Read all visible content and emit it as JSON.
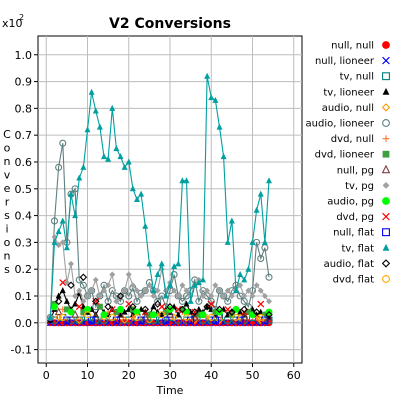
{
  "chart_data": {
    "type": "scatter",
    "title": "V2 Conversions",
    "xlabel": "Time",
    "ylabel": "Conversions",
    "y_multiplier_label": "x10",
    "y_multiplier_exponent": "2",
    "xlim": [
      -2,
      62
    ],
    "ylim": [
      -0.15,
      1.07
    ],
    "x_ticks": [
      0,
      10,
      20,
      30,
      40,
      50,
      60
    ],
    "x_tick_labels": [
      "0",
      "10",
      "20",
      "30",
      "40",
      "50",
      "60"
    ],
    "y_ticks": [
      -0.1,
      0.0,
      0.1,
      0.2,
      0.3,
      0.4,
      0.5,
      0.6,
      0.7,
      0.8,
      0.9,
      1.0
    ],
    "y_tick_labels": [
      "-0.1",
      "0.0",
      "0.1",
      "0.2",
      "0.3",
      "0.4",
      "0.5",
      "0.6",
      "0.7",
      "0.8",
      "0.9",
      "1.0"
    ],
    "grid": true,
    "legend_position": "right",
    "series": [
      {
        "name": "null, null",
        "color": "#ff0000",
        "marker": "circle-filled",
        "line": false,
        "x": [
          1,
          2,
          3,
          4,
          5,
          6,
          7,
          8,
          9,
          10,
          11,
          12,
          13,
          14,
          15,
          16,
          17,
          18,
          19,
          20,
          21,
          22,
          23,
          24,
          25,
          26,
          27,
          28,
          29,
          30,
          31,
          32,
          33,
          34,
          35,
          36,
          37,
          38,
          39,
          40,
          41,
          42,
          43,
          44,
          45,
          46,
          47,
          48,
          49,
          50,
          51,
          52,
          53,
          54
        ],
        "y": [
          0,
          0,
          0,
          0,
          0,
          0,
          0,
          0,
          0,
          0,
          0,
          0,
          0,
          0,
          0,
          0,
          0,
          0,
          0,
          0,
          0,
          0,
          0,
          0,
          0,
          0,
          0,
          0,
          0,
          0,
          0,
          0,
          0,
          0,
          0,
          0,
          0,
          0,
          0,
          0,
          0,
          0,
          0,
          0,
          0,
          0,
          0,
          0,
          0,
          0,
          0,
          0,
          0,
          0
        ]
      },
      {
        "name": "null, lioneer",
        "color": "#0000ff",
        "marker": "x",
        "line": false,
        "x": [
          1,
          3,
          5,
          7,
          9,
          11,
          13,
          15,
          17,
          19,
          21,
          23,
          25,
          27,
          29,
          31,
          33,
          35,
          37,
          39,
          41,
          43,
          45,
          47,
          49,
          51,
          53
        ],
        "y": [
          0,
          0,
          0,
          0,
          0,
          0,
          0,
          0,
          0,
          0,
          0,
          0,
          0,
          0,
          0,
          0,
          0,
          0,
          0,
          0,
          0,
          0,
          0,
          0,
          0,
          0,
          0
        ]
      },
      {
        "name": "tv, null",
        "color": "#008080",
        "marker": "square-open",
        "line": false,
        "x": [
          2,
          4,
          6,
          8,
          10,
          12,
          14,
          16,
          18,
          20,
          22,
          24,
          26,
          28,
          30,
          32,
          34,
          36,
          38,
          40,
          42,
          44,
          46,
          48,
          50,
          52,
          54
        ],
        "y": [
          0.01,
          0.02,
          0.01,
          0.01,
          0.02,
          0.01,
          0.01,
          0.02,
          0.01,
          0.01,
          0.02,
          0.01,
          0.01,
          0.01,
          0.02,
          0.01,
          0.01,
          0.02,
          0.01,
          0.01,
          0.02,
          0.01,
          0.01,
          0.01,
          0.02,
          0.01,
          0.01
        ]
      },
      {
        "name": "tv, lioneer",
        "color": "#000000",
        "marker": "triangle-filled",
        "line": true,
        "x": [
          1,
          2,
          3,
          4,
          5,
          6,
          7,
          8,
          9,
          10,
          11,
          12,
          13,
          14,
          15,
          16,
          17,
          18,
          19,
          20,
          21,
          22,
          23,
          24,
          25,
          26,
          27,
          28,
          29,
          30,
          31,
          32,
          33,
          34,
          35,
          36,
          37,
          38,
          39,
          40,
          41,
          42,
          43,
          44,
          45,
          46,
          47,
          48,
          49,
          50,
          51,
          52,
          53,
          54
        ],
        "y": [
          0.01,
          0.05,
          0.1,
          0.12,
          0.08,
          0.05,
          0.07,
          0.11,
          0.06,
          0.04,
          0.05,
          0.03,
          0.06,
          0.04,
          0.03,
          0.05,
          0.04,
          0.03,
          0.04,
          0.05,
          0.03,
          0.04,
          0.05,
          0.04,
          0.03,
          0.06,
          0.04,
          0.03,
          0.05,
          0.04,
          0.06,
          0.03,
          0.05,
          0.07,
          0.04,
          0.03,
          0.05,
          0.04,
          0.06,
          0.05,
          0.03,
          0.04,
          0.05,
          0.03,
          0.04,
          0.05,
          0.04,
          0.03,
          0.04,
          0.05,
          0.03,
          0.04,
          0.03,
          0.02
        ]
      },
      {
        "name": "audio, null",
        "color": "#ff9900",
        "marker": "diamond-open",
        "line": false,
        "x": [
          3,
          8,
          14,
          19,
          25,
          31,
          36,
          42,
          47,
          52
        ],
        "y": [
          0.02,
          0.01,
          0.02,
          0.01,
          0.01,
          0.02,
          0.01,
          0.01,
          0.02,
          0.01
        ]
      },
      {
        "name": "audio, lioneer",
        "color": "#5f8080",
        "marker": "circle-open",
        "line": true,
        "x": [
          1,
          2,
          3,
          4,
          5,
          6,
          7,
          8,
          9,
          10,
          11,
          12,
          13,
          14,
          15,
          16,
          17,
          18,
          19,
          20,
          21,
          22,
          23,
          24,
          25,
          26,
          27,
          28,
          29,
          30,
          31,
          32,
          33,
          34,
          35,
          36,
          37,
          38,
          39,
          40,
          41,
          42,
          43,
          44,
          45,
          46,
          47,
          48,
          49,
          50,
          51,
          52,
          53,
          54
        ],
        "y": [
          0.02,
          0.38,
          0.58,
          0.67,
          0.3,
          0.48,
          0.5,
          0.16,
          0.14,
          0.1,
          0.12,
          0.06,
          0.1,
          0.14,
          0.08,
          0.12,
          0.1,
          0.08,
          0.12,
          0.1,
          0.13,
          0.08,
          0.11,
          0.12,
          0.15,
          0.12,
          0.08,
          0.1,
          0.06,
          0.12,
          0.18,
          0.1,
          0.08,
          0.1,
          0.12,
          0.16,
          0.08,
          0.12,
          0.1,
          0.08,
          0.05,
          0.12,
          0.1,
          0.08,
          0.12,
          0.14,
          0.1,
          0.08,
          0.06,
          0.12,
          0.3,
          0.24,
          0.28,
          0.17
        ]
      },
      {
        "name": "dvd, null",
        "color": "#ff8040",
        "marker": "plus",
        "line": false,
        "x": [
          4,
          9,
          15,
          21,
          27,
          33,
          39,
          45,
          51
        ],
        "y": [
          0.05,
          0.03,
          0.04,
          0.02,
          0.03,
          0.04,
          0.02,
          0.03,
          0.02
        ]
      },
      {
        "name": "dvd, lioneer",
        "color": "#40a040",
        "marker": "square-filled",
        "line": false,
        "x": [
          2,
          5,
          9,
          13,
          17,
          21,
          25,
          29,
          33,
          37,
          41,
          45,
          49,
          53
        ],
        "y": [
          0.07,
          0.05,
          0.04,
          0.06,
          0.04,
          0.05,
          0.03,
          0.04,
          0.05,
          0.03,
          0.04,
          0.03,
          0.04,
          0.03
        ]
      },
      {
        "name": "null, pg",
        "color": "#804040",
        "marker": "triangle-open",
        "line": false,
        "x": [
          3,
          7,
          12,
          18,
          24,
          30,
          36,
          42,
          48,
          54
        ],
        "y": [
          0.04,
          0.03,
          0.02,
          0.03,
          0.02,
          0.03,
          0.02,
          0.03,
          0.02,
          0.02
        ]
      },
      {
        "name": "tv, pg",
        "color": "#a0a0a0",
        "marker": "diamond-filled",
        "line": true,
        "x": [
          1,
          2,
          3,
          4,
          5,
          6,
          7,
          8,
          9,
          10,
          11,
          12,
          13,
          14,
          15,
          16,
          17,
          18,
          19,
          20,
          21,
          22,
          23,
          24,
          25,
          26,
          27,
          28,
          29,
          30,
          31,
          32,
          33,
          34,
          35,
          36,
          37,
          38,
          39,
          40,
          41,
          42,
          43,
          44,
          45,
          46,
          47,
          48,
          49,
          50,
          51,
          52,
          53,
          54
        ],
        "y": [
          0.02,
          0.32,
          0.29,
          0.3,
          0.15,
          0.22,
          0.1,
          0.12,
          0.08,
          0.1,
          0.12,
          0.16,
          0.1,
          0.12,
          0.14,
          0.18,
          0.08,
          0.1,
          0.12,
          0.18,
          0.14,
          0.12,
          0.1,
          0.12,
          0.14,
          0.1,
          0.12,
          0.2,
          0.12,
          0.15,
          0.12,
          0.1,
          0.14,
          0.12,
          0.1,
          0.14,
          0.16,
          0.1,
          0.12,
          0.1,
          0.14,
          0.12,
          0.1,
          0.12,
          0.1,
          0.12,
          0.14,
          0.1,
          0.12,
          0.1,
          0.14,
          0.12,
          0.1,
          0.08
        ]
      },
      {
        "name": "audio, pg",
        "color": "#00ff00",
        "marker": "circle-filled",
        "line": false,
        "x": [
          2,
          6,
          10,
          14,
          18,
          22,
          26,
          30,
          34,
          38,
          42,
          46,
          50,
          54
        ],
        "y": [
          0.06,
          0.04,
          0.05,
          0.03,
          0.05,
          0.04,
          0.03,
          0.05,
          0.04,
          0.03,
          0.04,
          0.05,
          0.03,
          0.04
        ]
      },
      {
        "name": "dvd, pg",
        "color": "#ff0000",
        "marker": "x",
        "line": false,
        "x": [
          4,
          8,
          12,
          16,
          20,
          24,
          28,
          32,
          36,
          40,
          44,
          48,
          52
        ],
        "y": [
          0.15,
          0.06,
          0.08,
          0.05,
          0.07,
          0.04,
          0.06,
          0.05,
          0.04,
          0.07,
          0.05,
          0.04,
          0.07
        ]
      },
      {
        "name": "null, flat",
        "color": "#0000ff",
        "marker": "square-open",
        "line": false,
        "x": [
          5,
          11,
          17,
          23,
          29,
          35,
          41,
          47,
          53
        ],
        "y": [
          0.01,
          0.01,
          0.01,
          0.01,
          0.01,
          0.01,
          0.01,
          0.01,
          0.01
        ]
      },
      {
        "name": "tv, flat",
        "color": "#00a0a0",
        "marker": "triangle-filled",
        "line": true,
        "x": [
          1,
          2,
          3,
          4,
          5,
          6,
          7,
          8,
          9,
          10,
          11,
          12,
          13,
          14,
          15,
          16,
          17,
          18,
          19,
          20,
          21,
          22,
          23,
          24,
          25,
          26,
          27,
          28,
          29,
          30,
          31,
          32,
          33,
          34,
          35,
          36,
          37,
          38,
          39,
          40,
          41,
          42,
          43,
          44,
          45,
          46,
          47,
          48,
          49,
          50,
          51,
          52,
          53,
          54
        ],
        "y": [
          0.02,
          0.3,
          0.34,
          0.38,
          0.28,
          0.48,
          0.4,
          0.54,
          0.58,
          0.72,
          0.86,
          0.79,
          0.73,
          0.62,
          0.61,
          0.8,
          0.65,
          0.62,
          0.58,
          0.6,
          0.5,
          0.46,
          0.48,
          0.36,
          0.22,
          0.12,
          0.18,
          0.22,
          0.1,
          0.14,
          0.21,
          0.22,
          0.53,
          0.53,
          0.08,
          0.14,
          0.15,
          0.16,
          0.92,
          0.84,
          0.83,
          0.73,
          0.62,
          0.3,
          0.38,
          0.12,
          0.18,
          0.16,
          0.2,
          0.3,
          0.42,
          0.48,
          0.3,
          0.53
        ]
      },
      {
        "name": "audio, flat",
        "color": "#000000",
        "marker": "diamond-open",
        "line": false,
        "x": [
          3,
          6,
          9,
          12,
          15,
          18,
          21,
          24,
          27,
          30,
          33,
          36,
          39,
          42,
          45,
          48,
          51,
          54
        ],
        "y": [
          0.08,
          0.14,
          0.17,
          0.08,
          0.06,
          0.1,
          0.06,
          0.05,
          0.07,
          0.06,
          0.05,
          0.04,
          0.06,
          0.05,
          0.04,
          0.05,
          0.04,
          0.03
        ]
      },
      {
        "name": "dvd, flat",
        "color": "#ffaa00",
        "marker": "circle-open",
        "line": false,
        "x": [
          4,
          10,
          16,
          22,
          28,
          34,
          40,
          46,
          52
        ],
        "y": [
          0.02,
          0.03,
          0.02,
          0.02,
          0.03,
          0.02,
          0.02,
          0.02,
          0.02
        ]
      }
    ]
  }
}
